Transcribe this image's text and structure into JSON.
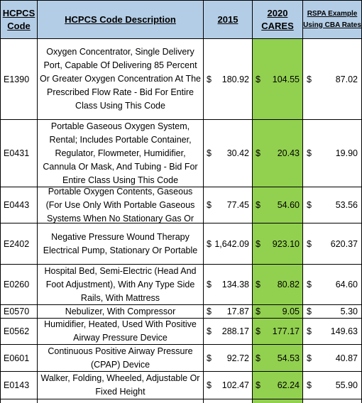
{
  "header": {
    "code_line1": "HCPCS",
    "code_line2": "Code",
    "description": "HCPCS Code Description",
    "y2015": "2015",
    "y2020_line1": "2020",
    "y2020_line2": "CARES",
    "rspa_line1": "RSPA Example",
    "rspa_line2": "Using CBA Rates"
  },
  "currency_symbol": "$",
  "colors": {
    "header_bg": "#b4cde6",
    "cares_column_bg": "#92d050"
  },
  "rows": [
    {
      "code": "E1390",
      "desc": "Oxygen Concentrator, Single Delivery Port, Capable Of Delivering 85 Percent Or Greater Oxygen Concentration At The Prescribed Flow Rate - Bid For Entire Class Using This Code",
      "v2015": "180.92",
      "v2020": "104.55",
      "rspa": "87.02"
    },
    {
      "code": "E0431",
      "desc": "Portable Gaseous Oxygen System, Rental; Includes Portable Container, Regulator, Flowmeter, Humidifier, Cannula Or Mask, And Tubing - Bid For Entire Class Using This Code",
      "v2015": "30.42",
      "v2020": "20.43",
      "rspa": "19.90"
    },
    {
      "code": "E0443",
      "desc": "Portable Oxygen Contents, Gaseous (For Use Only With Portable Gaseous Systems When No Stationary Gas Or",
      "v2015": "77.45",
      "v2020": "54.60",
      "rspa": "53.56"
    },
    {
      "code": "E2402",
      "desc": "Negative Pressure Wound Therapy Electrical Pump, Stationary Or Portable",
      "v2015": "1,642.09",
      "v2020": "923.10",
      "rspa": "620.37"
    },
    {
      "code": "E0260",
      "desc": "Hospital Bed, Semi-Electric (Head And Foot Adjustment), With Any Type Side Rails, With Mattress",
      "v2015": "134.38",
      "v2020": "80.82",
      "rspa": "64.60"
    },
    {
      "code": "E0570",
      "desc": "Nebulizer, With Compressor",
      "v2015": "17.87",
      "v2020": "9.05",
      "rspa": "5.30"
    },
    {
      "code": "E0562",
      "desc": "Humidifier, Heated, Used With Positive Airway Pressure Device",
      "v2015": "288.17",
      "v2020": "177.17",
      "rspa": "149.63"
    },
    {
      "code": "E0601",
      "desc": "Continuous Positive Airway Pressure (CPAP) Device",
      "v2015": "92.72",
      "v2020": "54.53",
      "rspa": "40.87"
    },
    {
      "code": "E0143",
      "desc": "Walker, Folding, Wheeled, Adjustable Or Fixed Height",
      "v2015": "102.47",
      "v2020": "62.24",
      "rspa": "55.90"
    }
  ]
}
